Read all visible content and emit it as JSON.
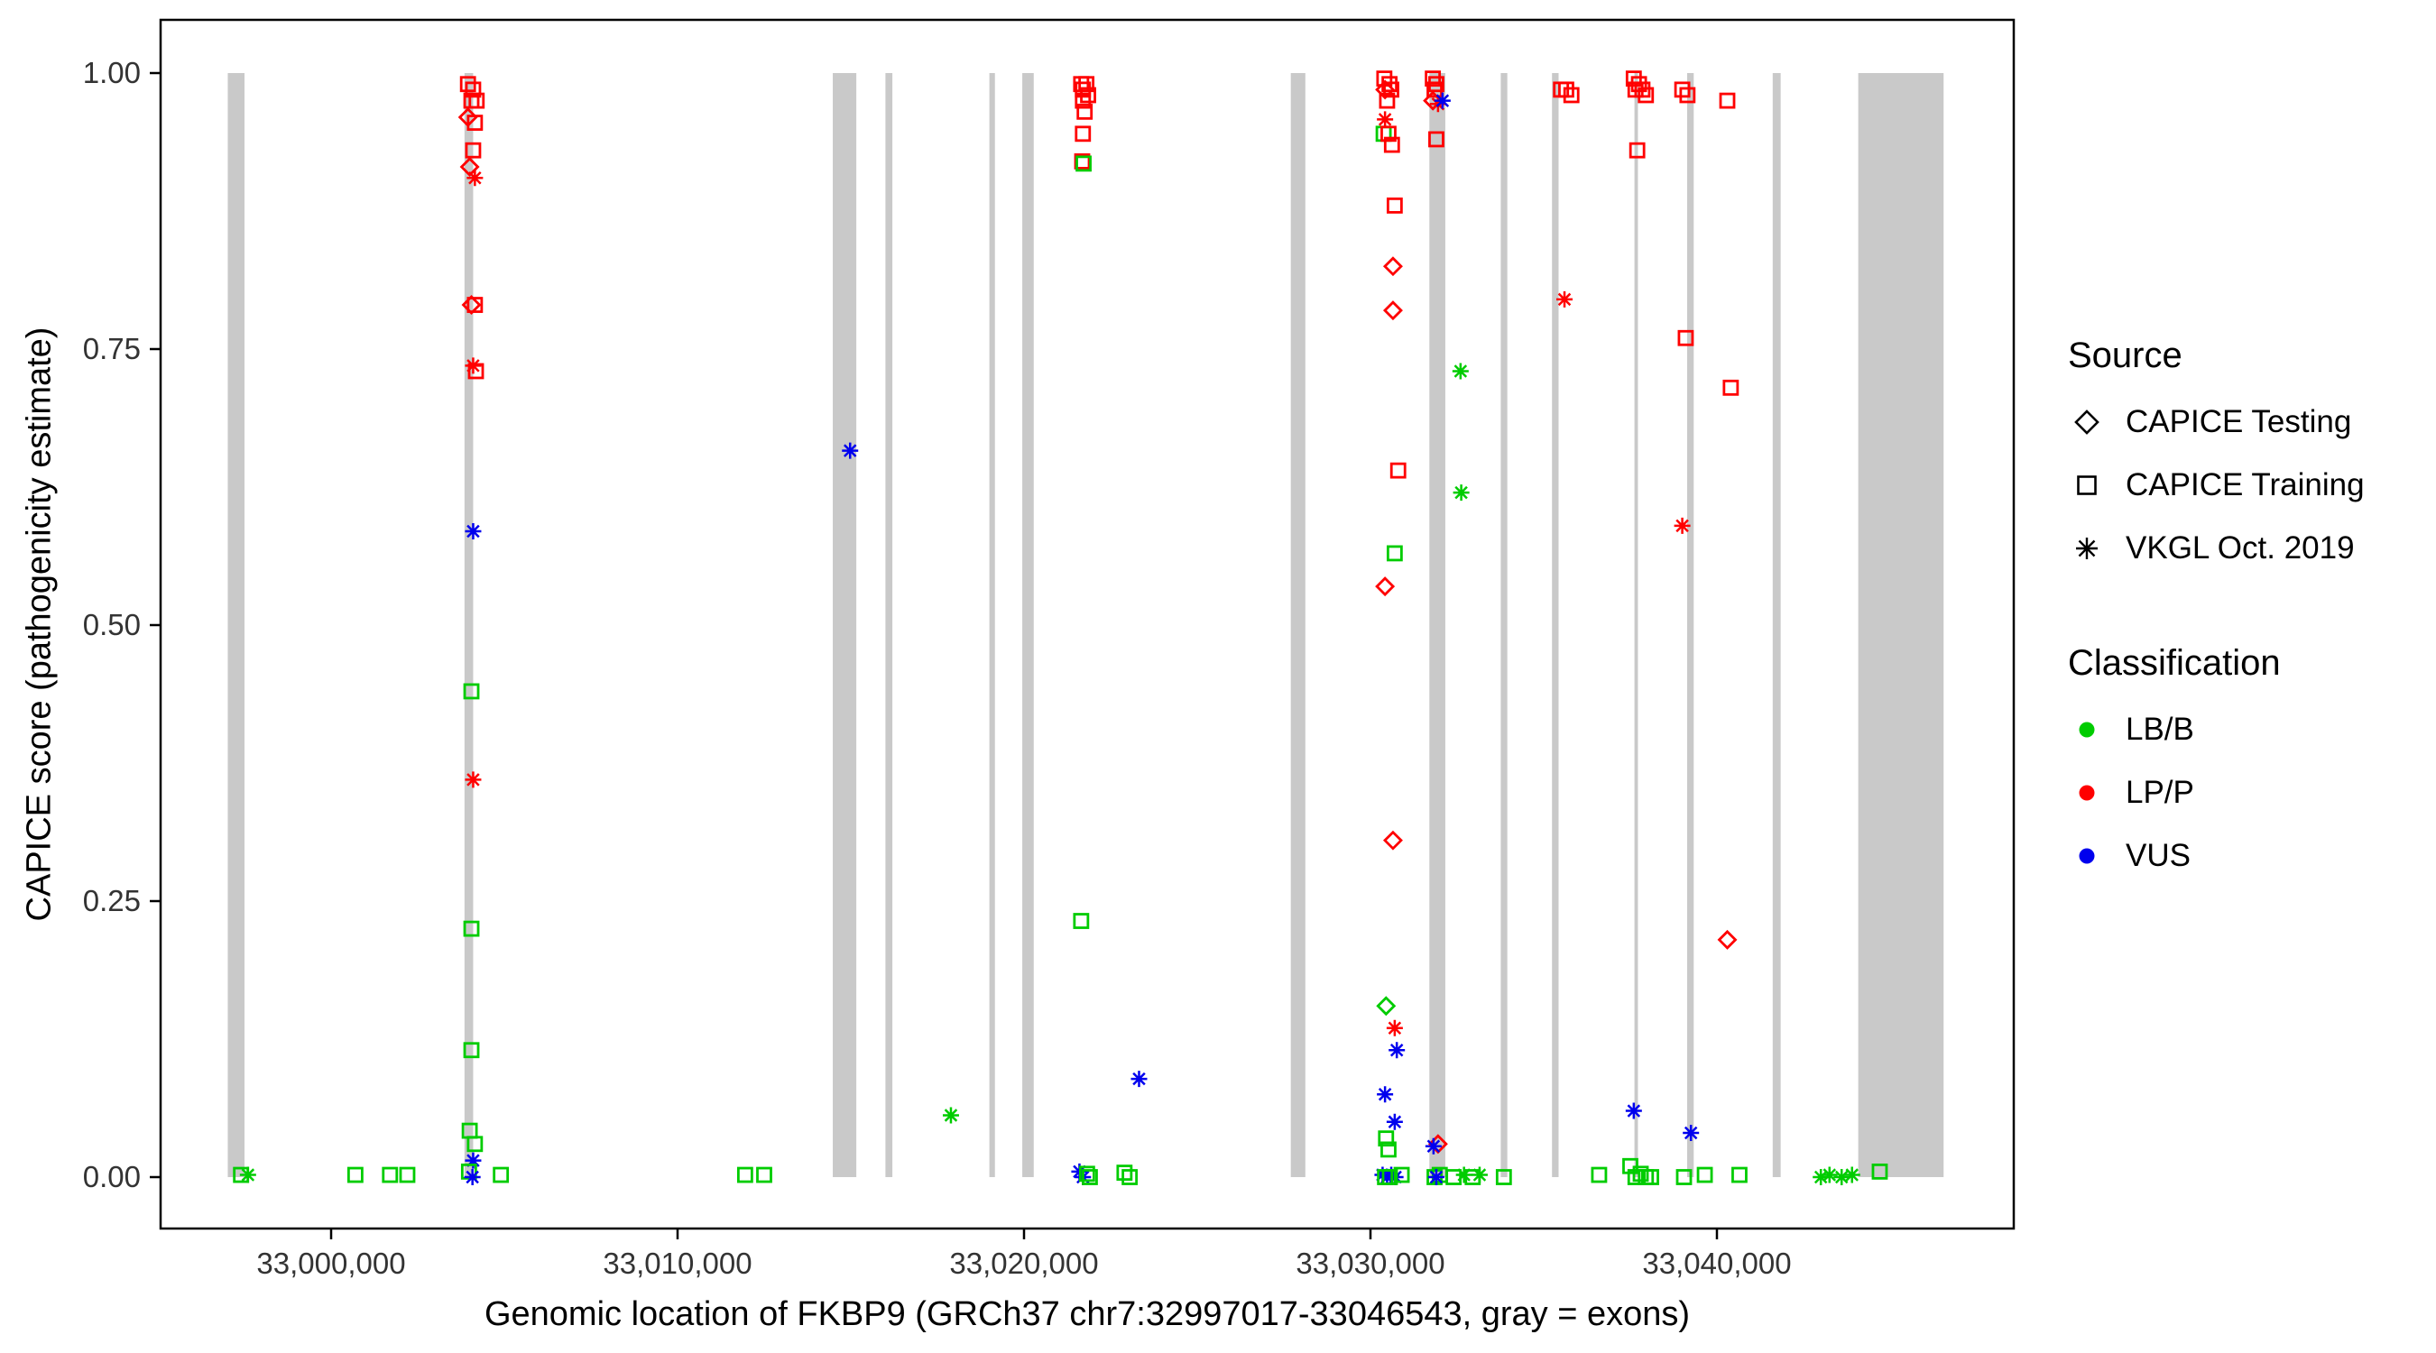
{
  "figure": {
    "xlabel": "Genomic location of FKBP9 (GRCh37 chr7:32997017-33046543, gray = exons)",
    "ylabel": "CAPICE score (pathogenicity estimate)"
  },
  "legend": {
    "source": {
      "title": "Source",
      "items": [
        {
          "label": "CAPICE Testing",
          "symbol": "diamond-open-icon"
        },
        {
          "label": "CAPICE Training",
          "symbol": "square-open-icon"
        },
        {
          "label": "VKGL Oct. 2019",
          "symbol": "asterisk-icon"
        }
      ]
    },
    "classification": {
      "title": "Classification",
      "items": [
        {
          "label": "LB/B",
          "color": "#00CC00"
        },
        {
          "label": "LP/P",
          "color": "#FF0000"
        },
        {
          "label": "VUS",
          "color": "#0000EE"
        }
      ]
    }
  },
  "chart_data": {
    "type": "scatter",
    "title": "",
    "xlabel": "Genomic location of FKBP9 (GRCh37 chr7:32997017-33046543, gray = exons)",
    "ylabel": "CAPICE score (pathogenicity estimate)",
    "xlim": [
      32995078,
      33048568
    ],
    "ylim": [
      0,
      1
    ],
    "grid": false,
    "legend_position": "right",
    "x_ticks": [
      {
        "value": 33000000,
        "label": "33,000,000"
      },
      {
        "value": 33010000,
        "label": "33,010,000"
      },
      {
        "value": 33020000,
        "label": "33,020,000"
      },
      {
        "value": 33030000,
        "label": "33,030,000"
      },
      {
        "value": 33040000,
        "label": "33,040,000"
      }
    ],
    "y_ticks": [
      {
        "value": 0,
        "label": "0.00"
      },
      {
        "value": 0.25,
        "label": "0.25"
      },
      {
        "value": 0.5,
        "label": "0.50"
      },
      {
        "value": 0.75,
        "label": "0.75"
      },
      {
        "value": 1,
        "label": "1.00"
      }
    ],
    "exon_color": "#C9C9C9",
    "exons": [
      [
        32997017,
        32997500
      ],
      [
        33003850,
        33004100
      ],
      [
        33014480,
        33015160
      ],
      [
        33016000,
        33016200
      ],
      [
        33019000,
        33019160
      ],
      [
        33019950,
        33020280
      ],
      [
        33027700,
        33028120
      ],
      [
        33031700,
        33032160
      ],
      [
        33033760,
        33033950
      ],
      [
        33035240,
        33035430
      ],
      [
        33037620,
        33037720
      ],
      [
        33039140,
        33039330
      ],
      [
        33041610,
        33041840
      ],
      [
        33044080,
        33046543
      ]
    ],
    "codes": {
      "source": {
        "D": "CAPICE Testing",
        "S": "CAPICE Training",
        "A": "VKGL Oct. 2019"
      },
      "classification": {
        "B": "LB/B",
        "P": "LP/P",
        "V": "VUS"
      }
    },
    "class_colors": {
      "B": "#00CC00",
      "P": "#FF0000",
      "V": "#0000EE"
    },
    "source_markers": {
      "D": "diamond-open",
      "S": "square-open",
      "A": "asterisk"
    },
    "points": [
      [
        32997400,
        0.002,
        "S",
        "B"
      ],
      [
        32997600,
        0.002,
        "A",
        "B"
      ],
      [
        33000700,
        0.002,
        "S",
        "B"
      ],
      [
        33001700,
        0.002,
        "S",
        "B"
      ],
      [
        33002200,
        0.002,
        "S",
        "B"
      ],
      [
        33003950,
        0.99,
        "S",
        "P"
      ],
      [
        33004100,
        0.985,
        "S",
        "P"
      ],
      [
        33004050,
        0.975,
        "S",
        "P"
      ],
      [
        33004200,
        0.975,
        "S",
        "P"
      ],
      [
        33003950,
        0.96,
        "D",
        "P"
      ],
      [
        33004150,
        0.955,
        "S",
        "P"
      ],
      [
        33004100,
        0.93,
        "S",
        "P"
      ],
      [
        33004000,
        0.915,
        "D",
        "P"
      ],
      [
        33004150,
        0.905,
        "A",
        "P"
      ],
      [
        33004050,
        0.79,
        "D",
        "P"
      ],
      [
        33004150,
        0.79,
        "S",
        "P"
      ],
      [
        33004100,
        0.735,
        "A",
        "P"
      ],
      [
        33004180,
        0.73,
        "S",
        "P"
      ],
      [
        33004100,
        0.585,
        "A",
        "V"
      ],
      [
        33004050,
        0.44,
        "S",
        "B"
      ],
      [
        33004100,
        0.36,
        "A",
        "P"
      ],
      [
        33004050,
        0.225,
        "S",
        "B"
      ],
      [
        33004050,
        0.115,
        "S",
        "B"
      ],
      [
        33004000,
        0.042,
        "S",
        "B"
      ],
      [
        33004150,
        0.03,
        "S",
        "B"
      ],
      [
        33004100,
        0.015,
        "A",
        "V"
      ],
      [
        33003980,
        0.005,
        "S",
        "B"
      ],
      [
        33004080,
        0.0,
        "A",
        "V"
      ],
      [
        33004900,
        0.002,
        "S",
        "B"
      ],
      [
        33011950,
        0.002,
        "S",
        "B"
      ],
      [
        33012500,
        0.002,
        "S",
        "B"
      ],
      [
        33014980,
        0.658,
        "A",
        "V"
      ],
      [
        33017890,
        0.056,
        "A",
        "B"
      ],
      [
        33021650,
        0.99,
        "S",
        "P"
      ],
      [
        33021800,
        0.99,
        "S",
        "P"
      ],
      [
        33021700,
        0.985,
        "S",
        "P"
      ],
      [
        33021850,
        0.98,
        "S",
        "P"
      ],
      [
        33021700,
        0.975,
        "S",
        "P"
      ],
      [
        33021750,
        0.965,
        "S",
        "P"
      ],
      [
        33021700,
        0.945,
        "S",
        "P"
      ],
      [
        33021680,
        0.92,
        "S",
        "P"
      ],
      [
        33021720,
        0.918,
        "S",
        "B"
      ],
      [
        33021650,
        0.232,
        "S",
        "B"
      ],
      [
        33021600,
        0.005,
        "A",
        "V"
      ],
      [
        33021700,
        0.0,
        "A",
        "V"
      ],
      [
        33021820,
        0.003,
        "S",
        "B"
      ],
      [
        33021900,
        0.0,
        "S",
        "B"
      ],
      [
        33022900,
        0.004,
        "S",
        "B"
      ],
      [
        33023050,
        0.0,
        "S",
        "B"
      ],
      [
        33023320,
        0.089,
        "A",
        "V"
      ],
      [
        33030400,
        0.995,
        "S",
        "P"
      ],
      [
        33030550,
        0.99,
        "S",
        "P"
      ],
      [
        33030420,
        0.985,
        "D",
        "P"
      ],
      [
        33030600,
        0.985,
        "S",
        "P"
      ],
      [
        33030480,
        0.975,
        "S",
        "P"
      ],
      [
        33030420,
        0.958,
        "A",
        "P"
      ],
      [
        33030380,
        0.945,
        "S",
        "B"
      ],
      [
        33030520,
        0.945,
        "S",
        "P"
      ],
      [
        33030620,
        0.935,
        "S",
        "P"
      ],
      [
        33030700,
        0.88,
        "S",
        "P"
      ],
      [
        33030650,
        0.825,
        "D",
        "P"
      ],
      [
        33030650,
        0.785,
        "D",
        "P"
      ],
      [
        33030800,
        0.64,
        "S",
        "P"
      ],
      [
        33030700,
        0.565,
        "S",
        "B"
      ],
      [
        33030420,
        0.535,
        "D",
        "P"
      ],
      [
        33030650,
        0.305,
        "D",
        "P"
      ],
      [
        33030450,
        0.155,
        "D",
        "B"
      ],
      [
        33030700,
        0.135,
        "A",
        "P"
      ],
      [
        33030760,
        0.115,
        "A",
        "V"
      ],
      [
        33030420,
        0.075,
        "A",
        "V"
      ],
      [
        33030700,
        0.05,
        "A",
        "V"
      ],
      [
        33030450,
        0.035,
        "S",
        "B"
      ],
      [
        33030520,
        0.025,
        "S",
        "B"
      ],
      [
        33030350,
        0.002,
        "A",
        "V"
      ],
      [
        33030480,
        0.0,
        "A",
        "V"
      ],
      [
        33030600,
        0.002,
        "A",
        "V"
      ],
      [
        33030720,
        0.0,
        "A",
        "V"
      ],
      [
        33030420,
        0.0,
        "S",
        "B"
      ],
      [
        33030560,
        0.0,
        "S",
        "B"
      ],
      [
        33030900,
        0.002,
        "S",
        "B"
      ],
      [
        33031800,
        0.995,
        "S",
        "P"
      ],
      [
        33031900,
        0.99,
        "S",
        "P"
      ],
      [
        33031850,
        0.985,
        "S",
        "P"
      ],
      [
        33031800,
        0.975,
        "D",
        "P"
      ],
      [
        33031950,
        0.972,
        "A",
        "P"
      ],
      [
        33032080,
        0.975,
        "A",
        "V"
      ],
      [
        33031900,
        0.94,
        "S",
        "P"
      ],
      [
        33031950,
        0.03,
        "D",
        "P"
      ],
      [
        33031820,
        0.028,
        "A",
        "V"
      ],
      [
        33031850,
        0.0,
        "S",
        "B"
      ],
      [
        33032000,
        0.002,
        "S",
        "B"
      ],
      [
        33031900,
        0.0,
        "A",
        "V"
      ],
      [
        33032600,
        0.73,
        "A",
        "B"
      ],
      [
        33032620,
        0.62,
        "A",
        "B"
      ],
      [
        33032400,
        0.0,
        "S",
        "B"
      ],
      [
        33032700,
        0.002,
        "A",
        "B"
      ],
      [
        33032950,
        0.0,
        "S",
        "B"
      ],
      [
        33033150,
        0.002,
        "A",
        "B"
      ],
      [
        33033850,
        0.0,
        "S",
        "B"
      ],
      [
        33035500,
        0.985,
        "S",
        "P"
      ],
      [
        33035650,
        0.985,
        "S",
        "P"
      ],
      [
        33035800,
        0.98,
        "S",
        "P"
      ],
      [
        33035600,
        0.795,
        "A",
        "P"
      ],
      [
        33036600,
        0.002,
        "S",
        "B"
      ],
      [
        33037600,
        0.995,
        "S",
        "P"
      ],
      [
        33037750,
        0.99,
        "S",
        "P"
      ],
      [
        33037650,
        0.985,
        "S",
        "P"
      ],
      [
        33037850,
        0.985,
        "S",
        "P"
      ],
      [
        33037950,
        0.98,
        "S",
        "P"
      ],
      [
        33037700,
        0.93,
        "S",
        "P"
      ],
      [
        33037600,
        0.06,
        "A",
        "V"
      ],
      [
        33037500,
        0.01,
        "S",
        "B"
      ],
      [
        33037650,
        0.0,
        "S",
        "B"
      ],
      [
        33037800,
        0.003,
        "S",
        "B"
      ],
      [
        33037950,
        0.0,
        "S",
        "B"
      ],
      [
        33038100,
        0.0,
        "S",
        "B"
      ],
      [
        33039000,
        0.985,
        "S",
        "P"
      ],
      [
        33039150,
        0.98,
        "S",
        "P"
      ],
      [
        33039100,
        0.76,
        "S",
        "P"
      ],
      [
        33039000,
        0.59,
        "A",
        "P"
      ],
      [
        33039250,
        0.04,
        "A",
        "V"
      ],
      [
        33039050,
        0.0,
        "S",
        "B"
      ],
      [
        33039650,
        0.002,
        "S",
        "B"
      ],
      [
        33040300,
        0.975,
        "S",
        "P"
      ],
      [
        33040400,
        0.715,
        "S",
        "P"
      ],
      [
        33040300,
        0.215,
        "D",
        "P"
      ],
      [
        33040650,
        0.002,
        "S",
        "B"
      ],
      [
        33043000,
        0.0,
        "A",
        "B"
      ],
      [
        33043250,
        0.002,
        "A",
        "B"
      ],
      [
        33043600,
        0.0,
        "A",
        "B"
      ],
      [
        33043900,
        0.002,
        "A",
        "B"
      ],
      [
        33044700,
        0.005,
        "S",
        "B"
      ]
    ]
  }
}
